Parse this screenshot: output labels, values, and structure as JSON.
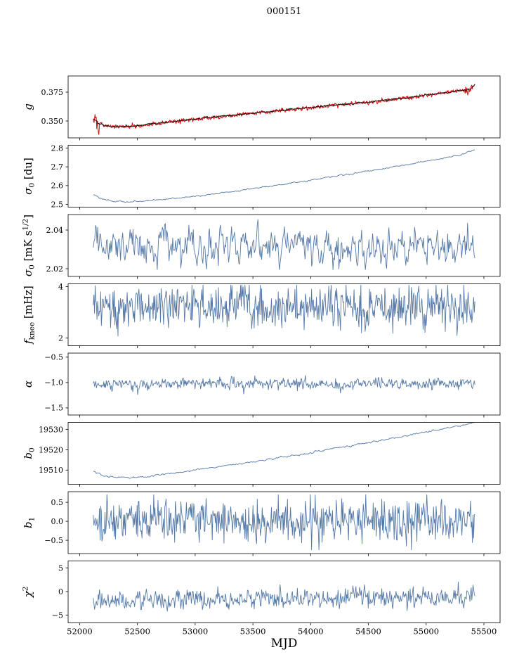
{
  "chart_data": {
    "type": "line",
    "title": "000151",
    "xlabel": "MJD",
    "grid": false,
    "legend": null,
    "xlim": [
      51900,
      55640
    ],
    "x_data_range": [
      52118,
      55422
    ],
    "xtick_vals": [
      52000,
      52500,
      53000,
      53500,
      54000,
      54500,
      55000,
      55500
    ],
    "xtick_labels": [
      "52000",
      "52500",
      "53000",
      "53500",
      "54000",
      "54500",
      "55000",
      "55500"
    ],
    "colors": {
      "data_line": "#5579a7",
      "fit_line": "#111111",
      "raw_data": "#dd1111",
      "frame": "#000000"
    },
    "panels": [
      {
        "name": "g",
        "label_parts": [
          {
            "t": "g",
            "it": true
          }
        ],
        "ylim": [
          0.3354,
          0.389
        ],
        "ytick_vals": [
          0.35,
          0.375
        ],
        "ytick_labels": [
          "0.350",
          "0.375"
        ],
        "series": [
          {
            "name": "g-raw",
            "color": "#dd1111",
            "width": 1.0,
            "n": 900,
            "seed": 101,
            "noise": 0.0009,
            "noise_rho": 0.25,
            "trend_x": [
              52118,
              52170,
              52230,
              52300,
              52400,
              52550,
              52750,
              53000,
              53300,
              53600,
              53900,
              54200,
              54500,
              54800,
              55100,
              55250,
              55380,
              55422
            ],
            "trend_y": [
              0.352,
              0.3477,
              0.3458,
              0.345,
              0.3452,
              0.3464,
              0.3488,
              0.3516,
              0.3548,
              0.3578,
              0.3608,
              0.3636,
              0.3663,
              0.3696,
              0.3738,
              0.3757,
              0.3776,
              0.3815
            ],
            "spikes": [
              {
                "x0": 52112,
                "x1": 52170,
                "amp": 0.0024,
                "bias": -0.0006
              },
              {
                "x0": 55320,
                "x1": 55400,
                "amp": 0.0013,
                "bias": -0.0008
              }
            ]
          },
          {
            "name": "g-fit",
            "color": "#111111",
            "width": 1.0,
            "n": 700,
            "seed": 102,
            "noise": 0.00035,
            "noise_rho": 0.5,
            "trend_x": [
              52118,
              52170,
              52230,
              52300,
              52400,
              52550,
              52750,
              53000,
              53300,
              53600,
              53900,
              54200,
              54500,
              54800,
              55100,
              55250,
              55380,
              55422
            ],
            "trend_y": [
              0.352,
              0.3477,
              0.3458,
              0.345,
              0.3452,
              0.3464,
              0.3488,
              0.3516,
              0.3548,
              0.3578,
              0.3608,
              0.3636,
              0.3663,
              0.3696,
              0.3738,
              0.3757,
              0.3776,
              0.3815
            ]
          }
        ]
      },
      {
        "name": "sigma0-du",
        "label_parts": [
          {
            "t": "σ",
            "it": true
          },
          {
            "t": "0",
            "script": "sub"
          },
          {
            "t": " [du]"
          }
        ],
        "ylim": [
          2.485,
          2.815
        ],
        "ytick_vals": [
          2.5,
          2.6,
          2.7,
          2.8
        ],
        "ytick_labels": [
          "2.5",
          "2.6",
          "2.7",
          "2.8"
        ],
        "series": [
          {
            "name": "sigma0-du",
            "color": "#5579a7",
            "width": 0.9,
            "n": 520,
            "seed": 201,
            "noise": 0.002,
            "noise_rho": 0.6,
            "trend_x": [
              52118,
              52200,
              52300,
              52450,
              52600,
              52800,
              53000,
              53300,
              53600,
              53900,
              54200,
              54500,
              54800,
              55100,
              55300,
              55422
            ],
            "trend_y": [
              2.552,
              2.528,
              2.516,
              2.513,
              2.519,
              2.53,
              2.543,
              2.567,
              2.593,
              2.62,
              2.648,
              2.678,
              2.709,
              2.741,
              2.764,
              2.795
            ]
          }
        ]
      },
      {
        "name": "sigma0-mks",
        "label_parts": [
          {
            "t": "σ",
            "it": true
          },
          {
            "t": "0",
            "script": "sub"
          },
          {
            "t": " [mK s"
          },
          {
            "t": "1/2",
            "script": "sup"
          },
          {
            "t": "]"
          }
        ],
        "ylim": [
          2.016,
          2.048
        ],
        "ytick_vals": [
          2.02,
          2.04
        ],
        "ytick_labels": [
          "2.02",
          "2.04"
        ],
        "series": [
          {
            "name": "sigma0-mks",
            "color": "#5579a7",
            "width": 0.9,
            "n": 520,
            "seed": 301,
            "noise": 0.005,
            "noise_rho": 0.5,
            "clip": [
              2.0195,
              2.0465
            ],
            "trend_x": [
              52118,
              52700,
              53300,
              53800,
              54300,
              54900,
              55422
            ],
            "trend_y": [
              2.0315,
              2.0322,
              2.0308,
              2.033,
              2.0306,
              2.032,
              2.03
            ]
          }
        ]
      },
      {
        "name": "fknee",
        "label_parts": [
          {
            "t": "f",
            "it": true
          },
          {
            "t": "knee",
            "script": "sub"
          },
          {
            "t": " [mHz]"
          }
        ],
        "ylim": [
          1.7,
          4.11
        ],
        "ytick_vals": [
          2,
          4
        ],
        "ytick_labels": [
          "2",
          "4"
        ],
        "series": [
          {
            "name": "fknee",
            "color": "#5579a7",
            "width": 0.9,
            "n": 620,
            "seed": 401,
            "noise": 0.42,
            "noise_rho": 0.1,
            "clip": [
              2.02,
              4.06
            ],
            "trend_x": [
              52118,
              55422
            ],
            "trend_y": [
              3.25,
              3.15
            ]
          }
        ]
      },
      {
        "name": "alpha",
        "label_parts": [
          {
            "t": "α",
            "it": true
          }
        ],
        "ylim": [
          -1.64,
          -0.42
        ],
        "ytick_vals": [
          -1.5,
          -1.0,
          -0.5
        ],
        "ytick_labels": [
          "−1.5",
          "−1.0",
          "−0.5"
        ],
        "series": [
          {
            "name": "alpha",
            "color": "#5579a7",
            "width": 0.9,
            "n": 620,
            "seed": 501,
            "noise": 0.055,
            "noise_rho": 0.25,
            "clip": [
              -1.25,
              -0.78
            ],
            "trend_x": [
              52118,
              55422
            ],
            "trend_y": [
              -1.02,
              -1.02
            ]
          }
        ]
      },
      {
        "name": "b0",
        "label_parts": [
          {
            "t": "b",
            "it": true
          },
          {
            "t": "0",
            "script": "sub"
          }
        ],
        "ylim": [
          19503.0,
          19533.5
        ],
        "ytick_vals": [
          19510,
          19520,
          19530
        ],
        "ytick_labels": [
          "19510",
          "19520",
          "19530"
        ],
        "series": [
          {
            "name": "b0",
            "color": "#5579a7",
            "width": 0.9,
            "n": 520,
            "seed": 601,
            "noise": 0.22,
            "noise_rho": 0.6,
            "trend_x": [
              52118,
              52200,
              52300,
              52450,
              52600,
              52900,
              53200,
              53600,
              54000,
              54400,
              54800,
              55100,
              55422
            ],
            "trend_y": [
              19509.5,
              19507.4,
              19506.5,
              19506.2,
              19506.9,
              19509.2,
              19511.6,
              19515.0,
              19518.6,
              19522.6,
              19526.6,
              19529.8,
              19533.2
            ]
          }
        ]
      },
      {
        "name": "b1",
        "label_parts": [
          {
            "t": "b",
            "it": true
          },
          {
            "t": "1",
            "script": "sub"
          }
        ],
        "ylim": [
          -0.85,
          0.78
        ],
        "ytick_vals": [
          -0.5,
          0.0,
          0.5
        ],
        "ytick_labels": [
          "−0.5",
          "0.0",
          "0.5"
        ],
        "series": [
          {
            "name": "b1",
            "color": "#5579a7",
            "width": 0.9,
            "n": 620,
            "seed": 701,
            "noise": 0.27,
            "noise_rho": 0.05,
            "clip": [
              -0.75,
              0.7
            ],
            "trend_x": [
              52118,
              55422
            ],
            "trend_y": [
              0.01,
              0.01
            ]
          }
        ]
      },
      {
        "name": "chi2",
        "label_parts": [
          {
            "t": "χ",
            "it": true
          },
          {
            "t": "2",
            "script": "sup"
          }
        ],
        "ylim": [
          -6.64,
          6.49
        ],
        "ytick_vals": [
          -5,
          0,
          5
        ],
        "ytick_labels": [
          "−5",
          "0",
          "5"
        ],
        "series": [
          {
            "name": "chi2",
            "color": "#5579a7",
            "width": 0.9,
            "n": 620,
            "seed": 801,
            "noise": 1.05,
            "noise_rho": 0.3,
            "clip": [
              -4.9,
              2.4
            ],
            "trend_x": [
              52118,
              53000,
              54000,
              55422
            ],
            "trend_y": [
              -1.85,
              -1.65,
              -1.35,
              -1.0
            ]
          }
        ]
      }
    ]
  }
}
